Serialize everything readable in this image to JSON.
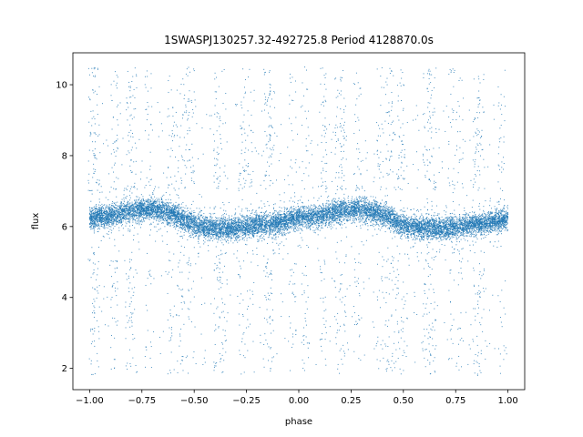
{
  "chart_data": {
    "type": "scatter",
    "title": "1SWASPJ130257.32-492725.8 Period 4128870.0s",
    "xlabel": "phase",
    "ylabel": "flux",
    "xlim": [
      -1.08,
      1.08
    ],
    "ylim": [
      1.4,
      10.9
    ],
    "x_ticks": [
      -1.0,
      -0.75,
      -0.5,
      -0.25,
      0.0,
      0.25,
      0.5,
      0.75,
      1.0
    ],
    "x_tick_labels": [
      "−1.00",
      "−0.75",
      "−0.50",
      "−0.25",
      "0.00",
      "0.25",
      "0.50",
      "0.75",
      "1.00"
    ],
    "y_ticks": [
      2,
      4,
      6,
      8,
      10
    ],
    "y_tick_labels": [
      "2",
      "4",
      "6",
      "8",
      "10"
    ],
    "grid": false,
    "series": [
      {
        "color": "#1f77b4",
        "marker": "point",
        "x_range": [
          -1.0,
          1.0
        ],
        "baseline_flux": [
          [
            -1.0,
            6.25
          ],
          [
            -0.9,
            6.3
          ],
          [
            -0.8,
            6.45
          ],
          [
            -0.7,
            6.5
          ],
          [
            -0.6,
            6.35
          ],
          [
            -0.5,
            6.05
          ],
          [
            -0.4,
            5.95
          ],
          [
            -0.3,
            5.95
          ],
          [
            -0.2,
            6.05
          ],
          [
            -0.1,
            6.1
          ],
          [
            0.0,
            6.25
          ],
          [
            0.1,
            6.3
          ],
          [
            0.2,
            6.45
          ],
          [
            0.3,
            6.5
          ],
          [
            0.4,
            6.35
          ],
          [
            0.5,
            6.05
          ],
          [
            0.6,
            5.95
          ],
          [
            0.7,
            5.95
          ],
          [
            0.8,
            6.05
          ],
          [
            0.9,
            6.1
          ],
          [
            1.0,
            6.25
          ]
        ],
        "outlier_columns": [
          -0.99,
          -0.97,
          -0.88,
          -0.81,
          -0.79,
          -0.72,
          -0.61,
          -0.57,
          -0.54,
          -0.51,
          -0.39,
          -0.36,
          -0.27,
          -0.23,
          -0.15,
          -0.13,
          -0.03,
          0.03,
          0.12,
          0.19,
          0.21,
          0.28,
          0.39,
          0.43,
          0.46,
          0.49,
          0.61,
          0.64,
          0.73,
          0.77,
          0.85,
          0.87,
          0.97
        ],
        "flux_range": [
          1.8,
          10.5
        ]
      }
    ]
  }
}
